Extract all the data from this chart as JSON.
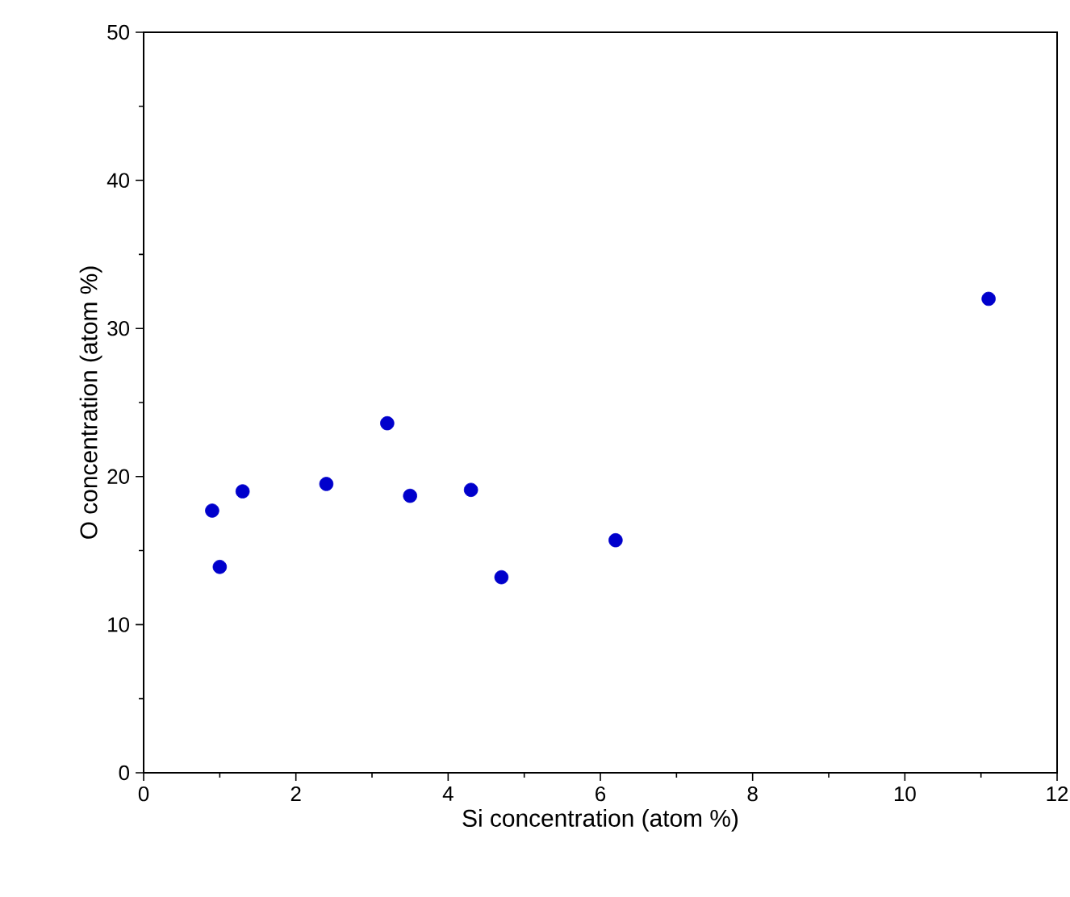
{
  "chart_data": {
    "type": "scatter",
    "xlabel": "Si concentration (atom %)",
    "ylabel": "O concentration (atom %)",
    "x": [
      0.9,
      1.0,
      1.3,
      2.4,
      3.2,
      3.5,
      4.3,
      4.7,
      6.2,
      11.1
    ],
    "series": [
      {
        "color": "#0000cc",
        "values": [
          17.7,
          13.9,
          19.0,
          19.5,
          23.6,
          18.7,
          19.1,
          13.2,
          15.7,
          32.0
        ]
      }
    ],
    "xlim": [
      0,
      12
    ],
    "ylim": [
      0,
      50
    ],
    "xticks": [
      0,
      2,
      4,
      6,
      8,
      10,
      12
    ],
    "yticks": [
      0,
      10,
      20,
      30,
      40,
      50
    ],
    "marker": "circle"
  }
}
